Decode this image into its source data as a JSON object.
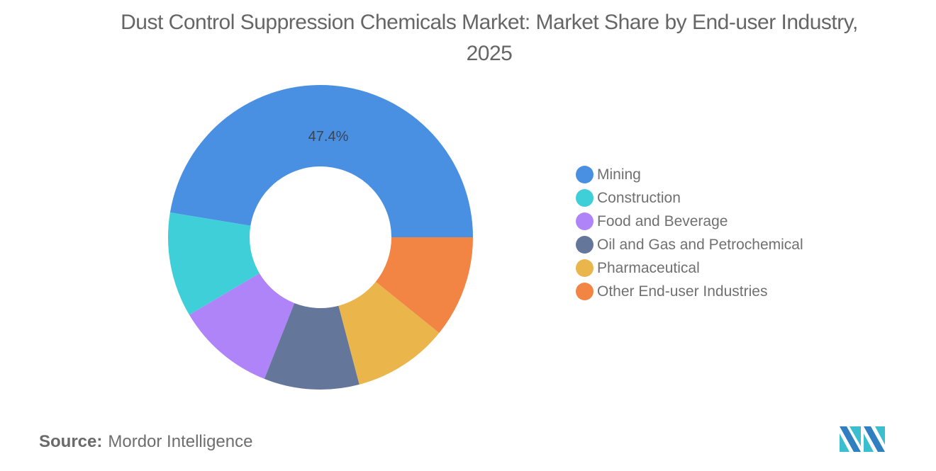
{
  "title": "Dust Control Suppression Chemicals Market: Market Share by End-user Industry, 2025",
  "chart_data": {
    "type": "pie",
    "variant": "donut",
    "title": "Dust Control Suppression Chemicals Market: Market Share by End-user Industry, 2025",
    "categories": [
      "Mining",
      "Construction",
      "Food and Beverage",
      "Oil and Gas and Petrochemical",
      "Pharmaceutical",
      "Other End-user Industries"
    ],
    "values": [
      47.4,
      11.1,
      10.5,
      10.1,
      10.1,
      10.8
    ],
    "colors": [
      "#4a90e2",
      "#3ecfd8",
      "#b084f9",
      "#64779b",
      "#eab54a",
      "#f28444"
    ],
    "data_labels": [
      {
        "category": "Mining",
        "text": "47.4%"
      }
    ],
    "legend_position": "right",
    "start_angle": "3 o'clock, counterclockwise"
  },
  "legend": [
    {
      "label": "Mining",
      "color": "#4a90e2"
    },
    {
      "label": "Construction",
      "color": "#3ecfd8"
    },
    {
      "label": "Food and Beverage",
      "color": "#b084f9"
    },
    {
      "label": "Oil and Gas and Petrochemical",
      "color": "#64779b"
    },
    {
      "label": "Pharmaceutical",
      "color": "#eab54a"
    },
    {
      "label": "Other End-user Industries",
      "color": "#f28444"
    }
  ],
  "label_mining": "47.4%",
  "source": {
    "prefix": "Source:",
    "text": "Mordor Intelligence"
  },
  "logo": {
    "name": "Mordor Intelligence logo"
  }
}
